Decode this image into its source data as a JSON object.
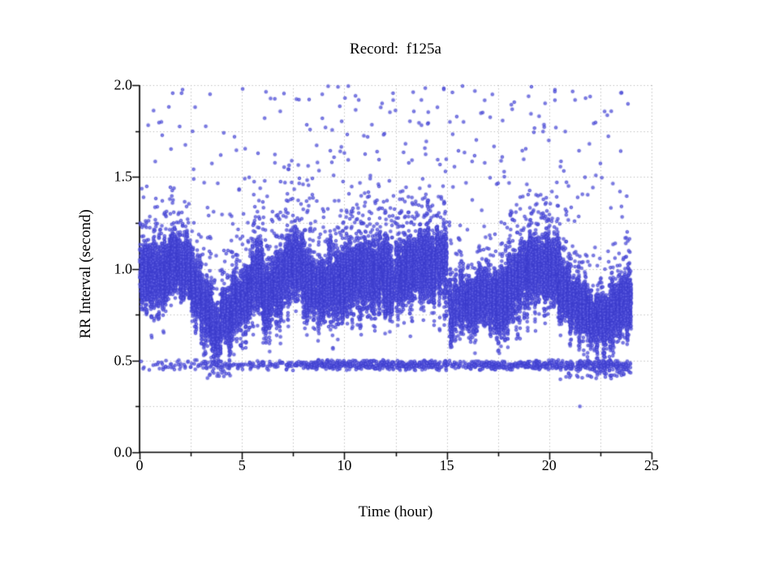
{
  "chart_data": {
    "type": "scatter",
    "title": "Record:  f125a",
    "xlabel": "Time (hour)",
    "ylabel": "RR Interval (second)",
    "xlim": [
      0,
      25
    ],
    "ylim": [
      0.0,
      2.0
    ],
    "x_major_ticks": [
      0,
      5,
      10,
      15,
      20,
      25
    ],
    "x_tick_labels": [
      "0",
      "5",
      "10",
      "15",
      "20",
      "25"
    ],
    "x_minor_step": 2.5,
    "y_major_ticks": [
      0.0,
      0.5,
      1.0,
      1.5,
      2.0
    ],
    "y_tick_labels": [
      "0.0",
      "0.5",
      "1.0",
      "1.5",
      "2.0"
    ],
    "y_minor_step": 0.25,
    "grid": "dotted gray lines at every minor and major tick, no top/right frame",
    "legend": "none",
    "background": "#ffffff",
    "axis_color": "#000000",
    "grid_color": "#b4b4b4",
    "point_color": "#5f5fe4",
    "point_edge_color": "#3c3ccd",
    "data_end_hour": 24.0,
    "series_description": "24-hour RR-interval tachogram: dense sinus-rhythm band roughly 0.55-1.3 s with vertical streak texture, a thin ectopic band near 0.45-0.5 s, sparse outliers 1.3-2.0 s, and one isolated point near 0.25 s.",
    "main_band_bins": {
      "bin_hours": 0.5,
      "bins_format": "[band_low_s, band_high_s, relative_density]",
      "bins": [
        [
          0.72,
          1.22,
          1.0
        ],
        [
          0.74,
          1.2,
          1.0
        ],
        [
          0.78,
          1.18,
          1.0
        ],
        [
          0.82,
          1.24,
          1.0
        ],
        [
          0.78,
          1.2,
          1.0
        ],
        [
          0.68,
          1.1,
          0.9
        ],
        [
          0.58,
          1.02,
          0.85
        ],
        [
          0.48,
          0.85,
          0.7
        ],
        [
          0.56,
          0.95,
          0.9
        ],
        [
          0.62,
          1.02,
          0.9
        ],
        [
          0.68,
          1.08,
          1.0
        ],
        [
          0.72,
          1.2,
          1.0
        ],
        [
          0.62,
          1.12,
          1.0
        ],
        [
          0.66,
          1.16,
          1.0
        ],
        [
          0.76,
          1.28,
          1.0
        ],
        [
          0.78,
          1.26,
          1.0
        ],
        [
          0.68,
          1.18,
          1.0
        ],
        [
          0.64,
          1.12,
          1.0
        ],
        [
          0.68,
          1.14,
          1.0
        ],
        [
          0.66,
          1.18,
          1.0
        ],
        [
          0.7,
          1.22,
          1.0
        ],
        [
          0.72,
          1.24,
          1.0
        ],
        [
          0.7,
          1.2,
          1.0
        ],
        [
          0.72,
          1.24,
          1.0
        ],
        [
          0.7,
          1.2,
          1.0
        ],
        [
          0.72,
          1.22,
          1.0
        ],
        [
          0.78,
          1.24,
          1.0
        ],
        [
          0.8,
          1.28,
          1.0
        ],
        [
          0.78,
          1.26,
          1.0
        ],
        [
          0.8,
          1.28,
          1.0
        ],
        [
          0.55,
          1.08,
          0.55
        ],
        [
          0.58,
          1.05,
          0.6
        ],
        [
          0.62,
          1.0,
          0.9
        ],
        [
          0.66,
          1.05,
          0.95
        ],
        [
          0.66,
          1.02,
          1.0
        ],
        [
          0.64,
          1.06,
          1.0
        ],
        [
          0.7,
          1.14,
          1.0
        ],
        [
          0.76,
          1.2,
          1.0
        ],
        [
          0.78,
          1.24,
          1.0
        ],
        [
          0.8,
          1.26,
          1.0
        ],
        [
          0.76,
          1.22,
          1.0
        ],
        [
          0.68,
          1.1,
          1.0
        ],
        [
          0.62,
          1.0,
          1.0
        ],
        [
          0.6,
          0.95,
          1.0
        ],
        [
          0.58,
          0.9,
          1.0
        ],
        [
          0.55,
          0.9,
          1.0
        ],
        [
          0.58,
          0.95,
          1.0
        ],
        [
          0.62,
          1.05,
          1.0
        ]
      ]
    },
    "low_band": {
      "range": [
        0.445,
        0.505
      ],
      "deep_range": [
        0.395,
        0.5
      ],
      "deep_bins": [
        6,
        7,
        8,
        41,
        42,
        43,
        44,
        45,
        46,
        47
      ],
      "counts": [
        4,
        5,
        8,
        10,
        8,
        9,
        14,
        24,
        18,
        10,
        12,
        10,
        14,
        12,
        14,
        16,
        24,
        28,
        30,
        30,
        28,
        30,
        32,
        30,
        28,
        30,
        30,
        28,
        30,
        28,
        14,
        12,
        24,
        28,
        30,
        28,
        26,
        28,
        30,
        30,
        28,
        30,
        32,
        34,
        34,
        38,
        36,
        30
      ]
    },
    "high_outliers": {
      "range": [
        1.28,
        2.0
      ],
      "counts": [
        3,
        4,
        4,
        5,
        4,
        4,
        5,
        4,
        4,
        4,
        5,
        5,
        6,
        6,
        7,
        7,
        7,
        6,
        7,
        8,
        8,
        7,
        7,
        8,
        7,
        7,
        8,
        7,
        8,
        7,
        6,
        5,
        5,
        5,
        5,
        6,
        7,
        7,
        8,
        8,
        7,
        7,
        6,
        5,
        5,
        5,
        5,
        6
      ]
    },
    "isolated_points": [
      [
        21.5,
        0.25
      ]
    ]
  }
}
